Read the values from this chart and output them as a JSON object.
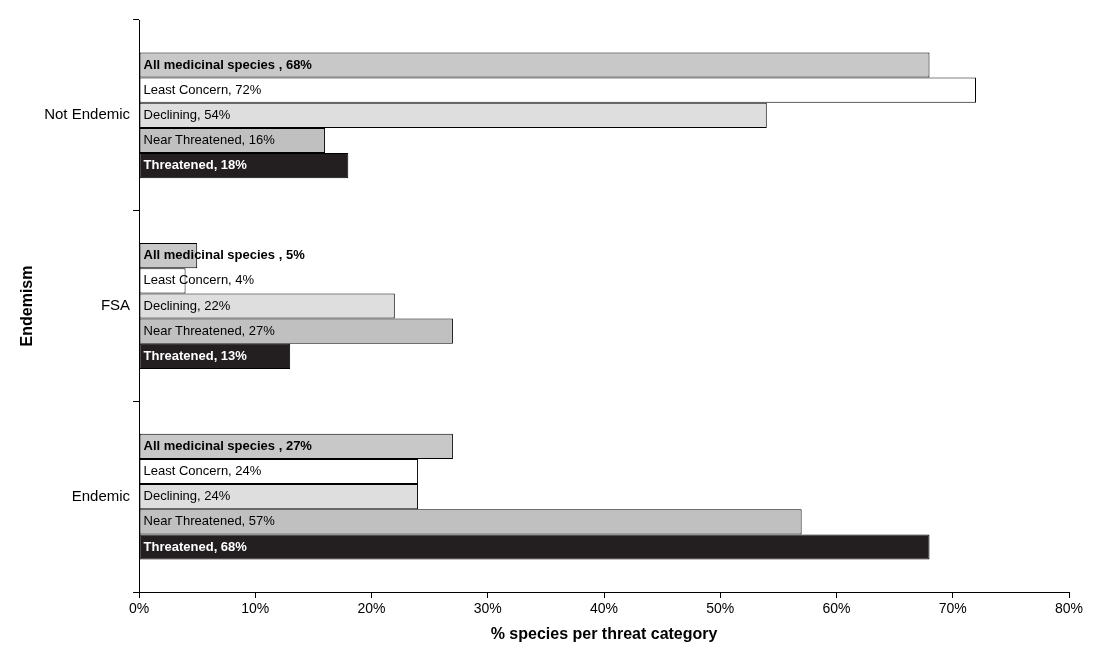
{
  "chart_data": {
    "type": "bar",
    "orientation": "horizontal",
    "xlabel": "% species per threat category",
    "ylabel": "Endemism",
    "categories": [
      "Not Endemic",
      "FSA",
      "Endemic"
    ],
    "series": [
      {
        "color": "#c8c8c8",
        "values": [
          68,
          5,
          27
        ],
        "value_labels": [
          "All medicinal species , 68%",
          "All medicinal species , 5%",
          "All medicinal species , 27%"
        ]
      },
      {
        "color": "#ffffff",
        "values": [
          72,
          4,
          24
        ],
        "value_labels": [
          "Least Concern, 72%",
          "Least Concern, 4%",
          "Least Concern, 24%"
        ]
      },
      {
        "color": "#dedede",
        "values": [
          54,
          22,
          24
        ],
        "value_labels": [
          "Declining, 54%",
          "Declining, 22%",
          "Declining, 24%"
        ]
      },
      {
        "color": "#c0c0c0",
        "values": [
          16,
          27,
          57
        ],
        "value_labels": [
          "Near Threatened, 16%",
          "Near Threatened, 27%",
          "Near Threatened, 57%"
        ]
      },
      {
        "color": "#231f20",
        "values": [
          18,
          13,
          68
        ],
        "value_labels": [
          "Threatened, 18%",
          "Threatened, 13%",
          "Threatened, 68%"
        ]
      }
    ],
    "xlim": [
      0,
      80
    ],
    "xticks": [
      {
        "value": 0,
        "label": "0%"
      },
      {
        "value": 10,
        "label": "10%"
      },
      {
        "value": 20,
        "label": "20%"
      },
      {
        "value": 30,
        "label": "30%"
      },
      {
        "value": 40,
        "label": "40%"
      },
      {
        "value": 50,
        "label": "50%"
      },
      {
        "value": 60,
        "label": "60%"
      },
      {
        "value": 70,
        "label": "70%"
      },
      {
        "value": 80,
        "label": "80%"
      }
    ],
    "grid": false,
    "legend": false
  }
}
